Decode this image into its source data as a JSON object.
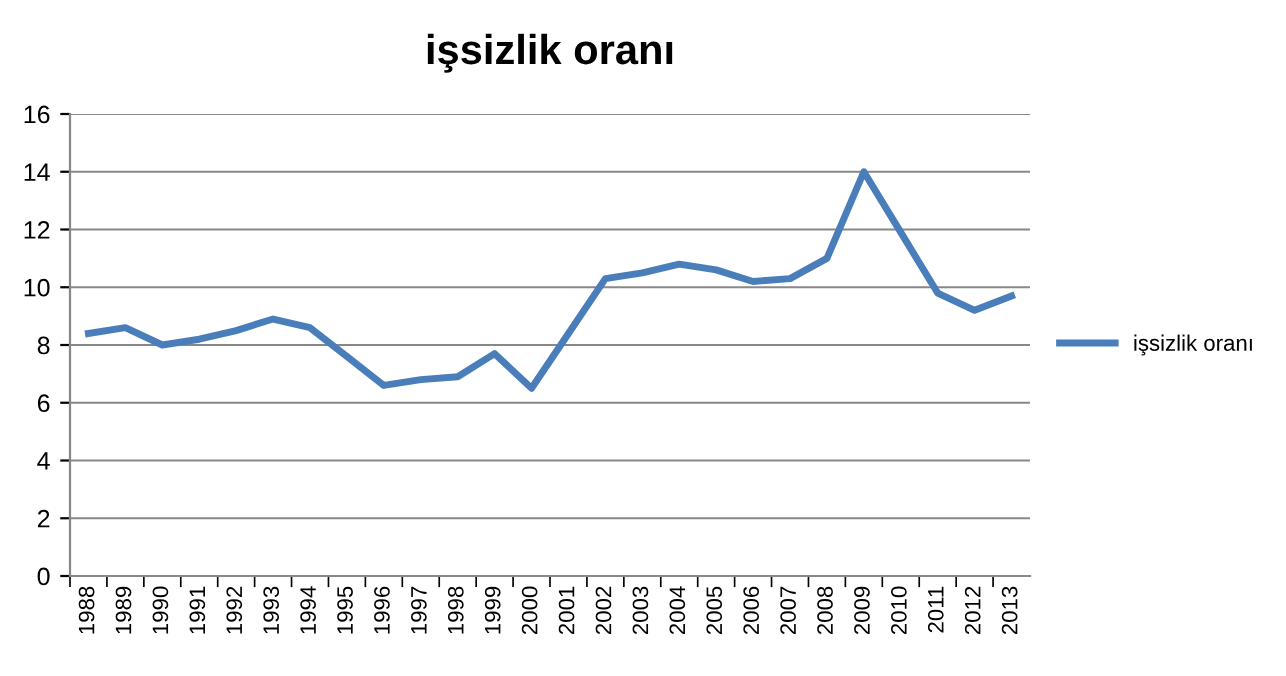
{
  "chart_data": {
    "type": "line",
    "title": "işsizlik oranı",
    "categories": [
      "1988",
      "1989",
      "1990",
      "1991",
      "1992",
      "1993",
      "1994",
      "1995",
      "1996",
      "1997",
      "1998",
      "1999",
      "2000",
      "2001",
      "2002",
      "2003",
      "2004",
      "2005",
      "2006",
      "2007",
      "2008",
      "2009",
      "2010",
      "2011",
      "2012",
      "2013"
    ],
    "series": [
      {
        "name": "işsizlik oranı",
        "color": "#4a7ebb",
        "values": [
          8.4,
          8.6,
          8.0,
          8.2,
          8.5,
          8.9,
          8.6,
          7.6,
          6.6,
          6.8,
          6.9,
          7.7,
          6.5,
          8.4,
          10.3,
          10.5,
          10.8,
          10.6,
          10.2,
          10.3,
          11.0,
          14.0,
          11.9,
          9.8,
          9.2,
          9.7
        ]
      }
    ],
    "ylim": [
      0,
      16
    ],
    "yticks": [
      0,
      2,
      4,
      6,
      8,
      10,
      12,
      14,
      16
    ],
    "grid": "y",
    "legend": "right",
    "marker": "none",
    "line_style": "solid"
  }
}
